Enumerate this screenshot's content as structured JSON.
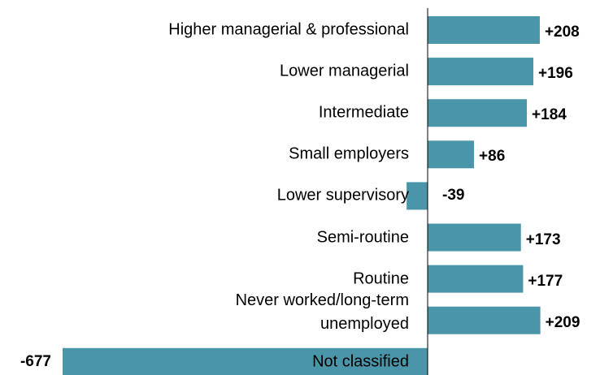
{
  "chart_data": {
    "type": "bar",
    "orientation": "horizontal",
    "categories": [
      "Higher managerial & professional",
      "Lower managerial",
      "Intermediate",
      "Small employers",
      "Lower supervisory",
      "Semi-routine",
      "Routine",
      "Never worked/long-term unemployed",
      "Not classified"
    ],
    "values": [
      208,
      196,
      184,
      86,
      -39,
      173,
      177,
      209,
      -677
    ],
    "value_labels": [
      "+208",
      "+196",
      "+184",
      "+86",
      "-39",
      "+173",
      "+177",
      "+209",
      "-677"
    ],
    "color": "#4a95a8"
  }
}
